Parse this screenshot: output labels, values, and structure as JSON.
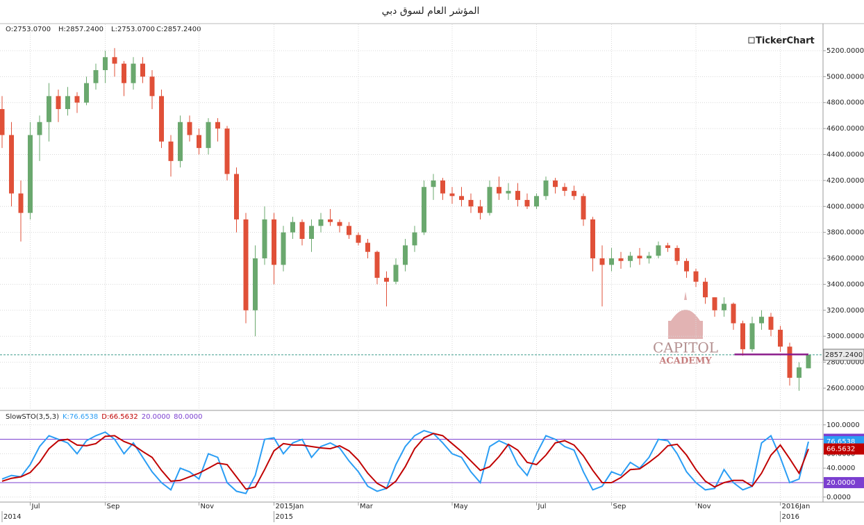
{
  "title": "المؤشر العام لسوق دبي",
  "info": [
    "O:2753.0700",
    "H:2857.2400",
    "L:2753.0700",
    "C:2857.2400"
  ],
  "brand": "TickerChart",
  "watermark": [
    "CAPITOL",
    "ACADEMY"
  ],
  "chart_data": [
    {
      "type": "candlestick",
      "categories": [
        null,
        null,
        null,
        "Jul",
        null,
        null,
        null,
        null,
        null,
        null,
        null,
        "Sep",
        null,
        null,
        null,
        null,
        null,
        null,
        null,
        null,
        null,
        "Nov",
        null,
        null,
        null,
        null,
        null,
        null,
        null,
        "2015Jan",
        null,
        null,
        null,
        null,
        null,
        null,
        null,
        null,
        "Mar",
        null,
        null,
        null,
        null,
        null,
        null,
        null,
        null,
        null,
        "May",
        null,
        null,
        null,
        null,
        null,
        null,
        null,
        null,
        "Jul",
        null,
        null,
        null,
        null,
        null,
        null,
        null,
        "Sep",
        null,
        null,
        null,
        null,
        null,
        null,
        null,
        null,
        "Nov",
        null,
        null,
        null,
        null,
        null,
        null,
        null,
        null,
        "2016Jan",
        null,
        null,
        null
      ],
      "years": [
        "2014",
        null,
        null,
        null,
        null,
        null,
        null,
        null,
        null,
        null,
        null,
        null,
        null,
        null,
        null,
        null,
        null,
        null,
        null,
        null,
        null,
        null,
        null,
        null,
        null,
        null,
        null,
        null,
        null,
        "2015",
        null,
        null,
        null,
        null,
        null,
        null,
        null,
        null,
        null,
        null,
        null,
        null,
        null,
        null,
        null,
        null,
        null,
        null,
        null,
        null,
        null,
        null,
        null,
        null,
        null,
        null,
        null,
        null,
        null,
        null,
        null,
        null,
        null,
        null,
        null,
        null,
        null,
        null,
        null,
        null,
        null,
        null,
        null,
        null,
        null,
        null,
        null,
        null,
        null,
        null,
        null,
        null,
        null,
        "2016",
        null,
        null,
        null
      ],
      "open": [
        4750,
        4550,
        4100,
        3950,
        4550,
        4650,
        4850,
        4750,
        4850,
        4800,
        4950,
        5050,
        5150,
        5100,
        4950,
        5100,
        5000,
        4850,
        4500,
        4350,
        4650,
        4550,
        4450,
        4650,
        4600,
        4250,
        3900,
        3200,
        3600,
        3900,
        3550,
        3800,
        3880,
        3750,
        3850,
        3900,
        3880,
        3850,
        3780,
        3720,
        3650,
        3450,
        3420,
        3550,
        3700,
        3800,
        4150,
        4200,
        4100,
        4080,
        4050,
        4000,
        3950,
        4150,
        4100,
        4120,
        4050,
        4000,
        4080,
        4200,
        4150,
        4120,
        4080,
        3900,
        3600,
        3550,
        3600,
        3580,
        3620,
        3600,
        3620,
        3700,
        3680,
        3580,
        3500,
        3420,
        3300,
        3200,
        3250,
        3100,
        2900,
        3100,
        3150,
        3050,
        2920,
        2680,
        2753.07
      ],
      "high": [
        4850,
        4650,
        4200,
        4650,
        4700,
        4950,
        4900,
        4920,
        4880,
        5000,
        5100,
        5200,
        5220,
        5120,
        5150,
        5150,
        5050,
        4900,
        4550,
        4700,
        4700,
        4600,
        4680,
        4680,
        4620,
        4300,
        3950,
        3700,
        4000,
        3950,
        3850,
        3920,
        3900,
        3900,
        3950,
        3980,
        3900,
        3880,
        3800,
        3750,
        3660,
        3500,
        3600,
        3750,
        3850,
        4200,
        4250,
        4220,
        4150,
        4150,
        4100,
        4050,
        4200,
        4230,
        4180,
        4180,
        4100,
        4100,
        4230,
        4220,
        4180,
        4160,
        4100,
        3920,
        3700,
        3680,
        3650,
        3650,
        3680,
        3650,
        3730,
        3720,
        3700,
        3600,
        3520,
        3450,
        3300,
        3300,
        3260,
        3120,
        3150,
        3200,
        3180,
        3080,
        2950,
        2800,
        2857.24
      ],
      "low": [
        4450,
        4000,
        3730,
        3900,
        4350,
        4500,
        4650,
        4700,
        4720,
        4780,
        4900,
        4950,
        5000,
        4850,
        4900,
        4950,
        4750,
        4450,
        4230,
        4300,
        4500,
        4400,
        4400,
        4500,
        4200,
        3800,
        3100,
        3000,
        3550,
        3400,
        3500,
        3750,
        3700,
        3650,
        3800,
        3850,
        3800,
        3750,
        3700,
        3600,
        3400,
        3230,
        3400,
        3500,
        3650,
        3780,
        4050,
        4050,
        4020,
        4000,
        3950,
        3900,
        3930,
        4050,
        4050,
        4000,
        3980,
        3980,
        4050,
        4100,
        4080,
        4050,
        3850,
        3500,
        3230,
        3500,
        3520,
        3530,
        3550,
        3560,
        3600,
        3650,
        3550,
        3450,
        3380,
        3250,
        3150,
        3150,
        3050,
        2850,
        2880,
        3050,
        3000,
        2880,
        2620,
        2580,
        2753.07
      ],
      "close": [
        4550,
        4100,
        3950,
        4550,
        4650,
        4850,
        4750,
        4850,
        4800,
        4950,
        5050,
        5150,
        5100,
        4950,
        5100,
        5000,
        4850,
        4500,
        4350,
        4650,
        4550,
        4450,
        4650,
        4600,
        4250,
        3900,
        3200,
        3600,
        3900,
        3550,
        3800,
        3880,
        3750,
        3850,
        3900,
        3880,
        3850,
        3780,
        3720,
        3650,
        3450,
        3420,
        3550,
        3700,
        3800,
        4150,
        4200,
        4100,
        4080,
        4050,
        4000,
        3950,
        4150,
        4100,
        4120,
        4050,
        4000,
        4080,
        4200,
        4150,
        4120,
        4080,
        3900,
        3600,
        3550,
        3600,
        3580,
        3620,
        3600,
        3620,
        3700,
        3680,
        3580,
        3500,
        3420,
        3300,
        3200,
        3250,
        3100,
        2900,
        3100,
        3150,
        3050,
        2920,
        2680,
        2760,
        2857.24
      ],
      "up_color": "#6aa86e",
      "down_color": "#e05038",
      "ylim": [
        2434,
        5403
      ],
      "yticks": [
        {
          "value": 2600,
          "label": "2600.0000"
        },
        {
          "value": 2800,
          "label": "2800.0000"
        },
        {
          "value": 3000,
          "label": "3000.0000"
        },
        {
          "value": 3200,
          "label": "3200.0000"
        },
        {
          "value": 3400,
          "label": "3400.0000"
        },
        {
          "value": 3600,
          "label": "3600.0000"
        },
        {
          "value": 3800,
          "label": "3800.0000"
        },
        {
          "value": 4000,
          "label": "4000.0000"
        },
        {
          "value": 4200,
          "label": "4200.0000"
        },
        {
          "value": 4400,
          "label": "4400.0000"
        },
        {
          "value": 4600,
          "label": "4600.0000"
        },
        {
          "value": 4800,
          "label": "4800.0000"
        },
        {
          "value": 5000,
          "label": "5000.0000"
        },
        {
          "value": 5200,
          "label": "5200.0000"
        }
      ],
      "last_price": {
        "value": 2857.24,
        "label": "2857.2400"
      },
      "support_level": 2860,
      "grid": true
    },
    {
      "type": "line",
      "title": "SlowSTO(3,5,3)",
      "series": [
        {
          "name": "K:",
          "color": "#2a9df4",
          "values": [
            25,
            30,
            28,
            45,
            70,
            85,
            80,
            75,
            60,
            78,
            85,
            90,
            80,
            60,
            75,
            55,
            35,
            20,
            10,
            40,
            35,
            25,
            60,
            55,
            20,
            8,
            5,
            30,
            80,
            82,
            60,
            75,
            80,
            55,
            70,
            75,
            68,
            50,
            35,
            15,
            8,
            12,
            45,
            70,
            85,
            92,
            88,
            75,
            60,
            55,
            35,
            20,
            70,
            78,
            72,
            45,
            30,
            60,
            85,
            80,
            70,
            65,
            35,
            10,
            15,
            35,
            30,
            48,
            40,
            55,
            80,
            78,
            60,
            35,
            20,
            10,
            12,
            38,
            20,
            10,
            15,
            75,
            85,
            55,
            20,
            25,
            76.6538
          ]
        },
        {
          "name": "D:",
          "color": "#c00000",
          "values": [
            22,
            26,
            28,
            34,
            48,
            67,
            78,
            80,
            72,
            71,
            74,
            84,
            85,
            77,
            72,
            63,
            55,
            37,
            22,
            23,
            28,
            33,
            40,
            47,
            45,
            28,
            11,
            14,
            38,
            64,
            74,
            72,
            72,
            70,
            68,
            67,
            71,
            64,
            51,
            33,
            19,
            12,
            22,
            42,
            67,
            82,
            88,
            85,
            74,
            63,
            50,
            37,
            42,
            56,
            73,
            65,
            48,
            45,
            58,
            75,
            78,
            72,
            57,
            37,
            20,
            20,
            27,
            38,
            39,
            48,
            58,
            71,
            73,
            58,
            38,
            22,
            14,
            20,
            23,
            23,
            15,
            33,
            58,
            72,
            53,
            33,
            66.5632
          ]
        }
      ],
      "levels": [
        {
          "value": 20,
          "label": "20.0000"
        },
        {
          "value": 80,
          "label": "80.0000"
        }
      ],
      "level_color": "#7b3fd0",
      "ylim": [
        -6,
        119
      ],
      "yticks": [
        {
          "value": 0,
          "label": "0.0000"
        },
        {
          "value": 20,
          "label": "20.0000"
        },
        {
          "value": 40,
          "label": "40.0000"
        },
        {
          "value": 60,
          "label": "60.0000"
        },
        {
          "value": 80,
          "label": "80.0000"
        },
        {
          "value": 100,
          "label": "100.0000"
        }
      ],
      "grid": true
    }
  ]
}
